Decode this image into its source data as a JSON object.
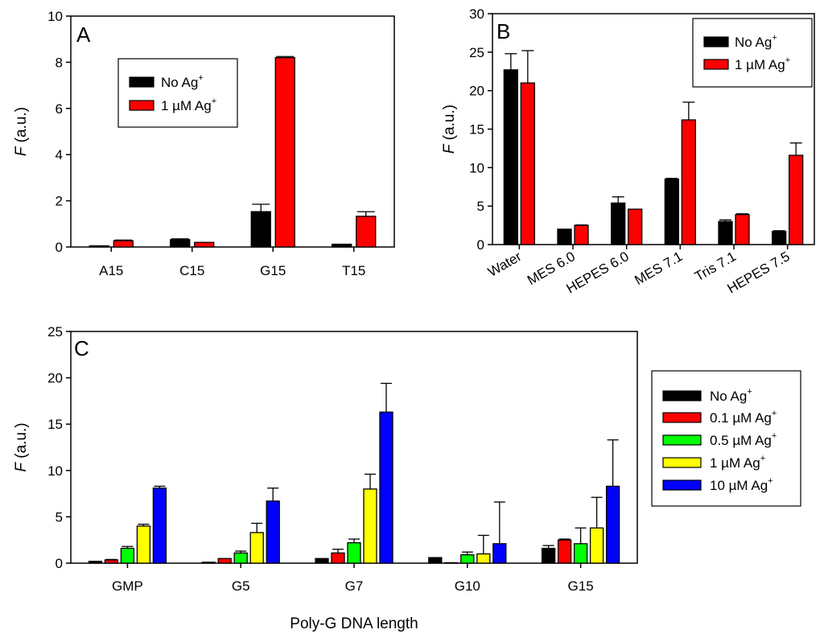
{
  "chart_data": [
    {
      "type": "bar",
      "panel": "A",
      "title": "",
      "xlabel": "",
      "ylabel": "F (a.u.)",
      "ylabel_italic_part": "F",
      "ylabel_rest": " (a.u.)",
      "ylim": [
        0,
        10
      ],
      "yticks": [
        0,
        2,
        4,
        6,
        8,
        10
      ],
      "categories": [
        "A15",
        "C15",
        "G15",
        "T15"
      ],
      "legend_position": "upper-left-center",
      "series": [
        {
          "name": "No Ag+",
          "label_main": "No Ag",
          "label_sup": "+",
          "color": "#000000",
          "values": [
            0.05,
            0.32,
            1.53,
            0.12
          ],
          "errors": [
            0.0,
            0.03,
            0.32,
            0.0
          ]
        },
        {
          "name": "1 µM Ag+",
          "label_main": "1 µM Ag",
          "label_sup": "+",
          "color": "#ff0000",
          "values": [
            0.27,
            0.2,
            8.2,
            1.33
          ],
          "errors": [
            0.03,
            0.0,
            0.05,
            0.2
          ]
        }
      ]
    },
    {
      "type": "bar",
      "panel": "B",
      "title": "",
      "xlabel": "",
      "ylabel": "F (a.u.)",
      "ylabel_italic_part": "F",
      "ylabel_rest": " (a.u.)",
      "ylim": [
        0,
        30
      ],
      "yticks": [
        0,
        5,
        10,
        15,
        20,
        25,
        30
      ],
      "categories": [
        "Water",
        "MES 6.0",
        "HEPES 6.0",
        "MES 7.1",
        "Tris 7.1",
        "HEPES 7.5"
      ],
      "legend_position": "top-right",
      "series": [
        {
          "name": "No Ag+",
          "label_main": "No Ag",
          "label_sup": "+",
          "color": "#000000",
          "values": [
            22.7,
            2.0,
            5.4,
            8.5,
            3.0,
            1.7
          ],
          "errors": [
            2.1,
            0.0,
            0.8,
            0.1,
            0.2,
            0.1
          ]
        },
        {
          "name": "1 µM Ag+",
          "label_main": "1 µM Ag",
          "label_sup": "+",
          "color": "#ff0000",
          "values": [
            21.0,
            2.5,
            4.6,
            16.2,
            3.9,
            11.6
          ],
          "errors": [
            4.2,
            0.05,
            0.0,
            2.3,
            0.1,
            1.6
          ]
        }
      ]
    },
    {
      "type": "bar",
      "panel": "C",
      "title": "",
      "xlabel": "Poly-G DNA length",
      "ylabel": "F (a.u.)",
      "ylabel_italic_part": "F",
      "ylabel_rest": " (a.u.)",
      "ylim": [
        0,
        25
      ],
      "yticks": [
        0,
        5,
        10,
        15,
        20,
        25
      ],
      "categories": [
        "GMP",
        "G5",
        "G7",
        "G10",
        "G15"
      ],
      "legend_position": "right-outside",
      "series": [
        {
          "name": "No Ag+",
          "label_main": "No Ag",
          "label_sup": "+",
          "color": "#000000",
          "values": [
            0.2,
            0.1,
            0.5,
            0.6,
            1.6
          ],
          "errors": [
            0.0,
            0.0,
            0.0,
            0.0,
            0.3
          ]
        },
        {
          "name": "0.1 µM Ag+",
          "label_main": "0.1 µM Ag",
          "label_sup": "+",
          "color": "#ff0000",
          "values": [
            0.35,
            0.5,
            1.1,
            0.05,
            2.5
          ],
          "errors": [
            0.05,
            0.0,
            0.4,
            0.0,
            0.1
          ]
        },
        {
          "name": "0.5 µM Ag+",
          "label_main": "0.5 µM Ag",
          "label_sup": "+",
          "color": "#00ff00",
          "values": [
            1.6,
            1.1,
            2.2,
            0.9,
            2.1
          ],
          "errors": [
            0.2,
            0.2,
            0.4,
            0.3,
            1.7
          ]
        },
        {
          "name": "1 µM Ag+",
          "label_main": "1 µM Ag",
          "label_sup": "+",
          "color": "#ffff00",
          "values": [
            4.0,
            3.3,
            8.0,
            1.0,
            3.8
          ],
          "errors": [
            0.2,
            1.0,
            1.6,
            2.0,
            3.3
          ]
        },
        {
          "name": "10 µM Ag+",
          "label_main": "10 µM Ag",
          "label_sup": "+",
          "color": "#0000ff",
          "values": [
            8.1,
            6.7,
            16.3,
            2.1,
            8.3
          ],
          "errors": [
            0.2,
            1.4,
            3.1,
            4.5,
            5.0
          ]
        }
      ]
    }
  ]
}
